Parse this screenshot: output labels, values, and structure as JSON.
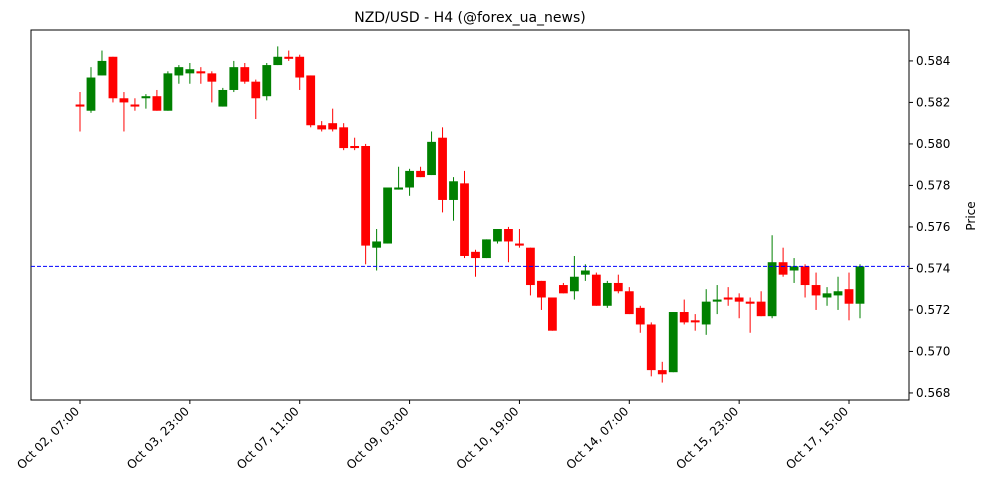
{
  "chart_data": {
    "type": "candlestick",
    "title": "NZD/USD - H4 (@forex_ua_news)",
    "y_label": "Price",
    "categories": [
      "Oct 02, 07:00",
      null,
      null,
      null,
      null,
      null,
      null,
      null,
      null,
      null,
      "Oct 03, 23:00",
      null,
      null,
      null,
      null,
      null,
      null,
      null,
      null,
      null,
      "Oct 07, 11:00",
      null,
      null,
      null,
      null,
      null,
      null,
      null,
      null,
      null,
      "Oct 09, 03:00",
      null,
      null,
      null,
      null,
      null,
      null,
      null,
      null,
      null,
      "Oct 10, 19:00",
      null,
      null,
      null,
      null,
      null,
      null,
      null,
      null,
      null,
      "Oct 14, 07:00",
      null,
      null,
      null,
      null,
      null,
      null,
      null,
      null,
      null,
      "Oct 15, 23:00",
      null,
      null,
      null,
      null,
      null,
      null,
      null,
      null,
      null,
      "Oct 17, 15:00",
      null
    ],
    "open": [
      0.5819,
      0.5816,
      0.5833,
      0.5842,
      0.5822,
      0.5819,
      0.5822,
      0.5823,
      0.5816,
      0.5833,
      0.5834,
      0.5835,
      0.5834,
      0.5818,
      0.5826,
      0.5837,
      0.583,
      0.5823,
      0.5838,
      0.5842,
      0.5842,
      0.5833,
      0.5809,
      0.581,
      0.5808,
      0.5799,
      0.5799,
      0.575,
      0.5752,
      0.5778,
      0.5779,
      0.5787,
      0.5785,
      0.5803,
      0.5773,
      0.5781,
      0.5748,
      0.5745,
      0.5753,
      0.5759,
      0.5752,
      0.575,
      0.5734,
      0.5726,
      0.5732,
      0.5729,
      0.5737,
      0.5737,
      0.5722,
      0.5733,
      0.5729,
      0.5721,
      0.5713,
      0.5691,
      0.569,
      0.5719,
      0.5715,
      0.5713,
      0.5724,
      0.5726,
      0.5726,
      0.5724,
      0.5724,
      0.5717,
      0.5743,
      0.5739,
      0.5741,
      0.5732,
      0.5726,
      0.5727,
      0.573,
      0.5723
    ],
    "high": [
      0.5825,
      0.5837,
      0.5845,
      0.5842,
      0.5825,
      0.5822,
      0.5824,
      0.5826,
      0.5835,
      0.5838,
      0.5839,
      0.5837,
      0.5835,
      0.5827,
      0.584,
      0.5839,
      0.5831,
      0.5839,
      0.5847,
      0.5845,
      0.5843,
      0.5833,
      0.5811,
      0.5817,
      0.581,
      0.5803,
      0.58,
      0.5759,
      0.5779,
      0.5789,
      0.5788,
      0.5789,
      0.5806,
      0.5808,
      0.5784,
      0.5787,
      0.5749,
      0.5754,
      0.5759,
      0.576,
      0.5759,
      0.575,
      0.5734,
      0.5726,
      0.5733,
      0.5746,
      0.5742,
      0.5738,
      0.5734,
      0.5737,
      0.5731,
      0.5722,
      0.5714,
      0.5695,
      0.5719,
      0.5725,
      0.5718,
      0.573,
      0.5732,
      0.5731,
      0.5728,
      0.5726,
      0.5729,
      0.5756,
      0.575,
      0.5745,
      0.5742,
      0.5738,
      0.5731,
      0.5736,
      0.5738,
      0.5742
    ],
    "low": [
      0.5806,
      0.5815,
      0.5833,
      0.582,
      0.5806,
      0.5816,
      0.5817,
      0.5816,
      0.5816,
      0.5829,
      0.5829,
      0.5829,
      0.582,
      0.5818,
      0.5825,
      0.5829,
      0.5812,
      0.5821,
      0.5838,
      0.584,
      0.5826,
      0.5808,
      0.5806,
      0.5806,
      0.5797,
      0.5797,
      0.5742,
      0.5739,
      0.5752,
      0.5778,
      0.5775,
      0.5784,
      0.5785,
      0.5767,
      0.5763,
      0.5745,
      0.5736,
      0.5745,
      0.5752,
      0.5743,
      0.575,
      0.5727,
      0.572,
      0.571,
      0.5728,
      0.5725,
      0.5734,
      0.5722,
      0.5721,
      0.5728,
      0.5718,
      0.5709,
      0.5688,
      0.5685,
      0.569,
      0.5713,
      0.571,
      0.5708,
      0.5718,
      0.5722,
      0.5716,
      0.5709,
      0.5717,
      0.5716,
      0.5736,
      0.5733,
      0.5726,
      0.572,
      0.5722,
      0.572,
      0.5715,
      0.5716
    ],
    "close": [
      0.5818,
      0.5832,
      0.584,
      0.5822,
      0.582,
      0.5818,
      0.5823,
      0.5816,
      0.5834,
      0.5837,
      0.5836,
      0.5834,
      0.583,
      0.5826,
      0.5837,
      0.583,
      0.5822,
      0.5838,
      0.5842,
      0.5841,
      0.5832,
      0.5809,
      0.5807,
      0.5807,
      0.5798,
      0.5798,
      0.5751,
      0.5753,
      0.5779,
      0.5779,
      0.5787,
      0.5784,
      0.5801,
      0.5773,
      0.5782,
      0.5746,
      0.5745,
      0.5754,
      0.5759,
      0.5753,
      0.5751,
      0.5732,
      0.5726,
      0.571,
      0.5728,
      0.5736,
      0.5739,
      0.5722,
      0.5733,
      0.5729,
      0.5718,
      0.5713,
      0.5691,
      0.5689,
      0.5719,
      0.5714,
      0.5714,
      0.5724,
      0.5725,
      0.5725,
      0.5724,
      0.5723,
      0.5717,
      0.5743,
      0.5737,
      0.5741,
      0.5732,
      0.5727,
      0.5728,
      0.5729,
      0.5723,
      0.5741
    ],
    "up_color": "#008000",
    "down_color": "#ff0000",
    "hline": {
      "value": 0.5741,
      "color": "#0000ff",
      "style": "dashed"
    },
    "ylim": [
      0.56766,
      0.58549
    ],
    "yticks": [
      0.568,
      {
        "value": 0.57,
        "label": "0.570"
      },
      0.572,
      0.574,
      0.576,
      0.578,
      {
        "value": 0.58,
        "label": "0.580"
      },
      0.582,
      0.584
    ],
    "y_axis_side": "right"
  }
}
